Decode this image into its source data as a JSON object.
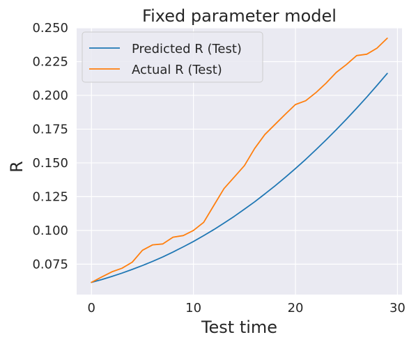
{
  "chart_data": {
    "type": "line",
    "title": "Fixed parameter model",
    "xlabel": "Test time",
    "ylabel": "R",
    "xlim": [
      -1.45,
      30.45
    ],
    "ylim": [
      0.0525,
      0.25
    ],
    "x_ticks": [
      0,
      10,
      20,
      30
    ],
    "y_ticks": [
      0.075,
      0.1,
      0.125,
      0.15,
      0.175,
      0.2,
      0.225,
      0.25
    ],
    "grid": true,
    "legend_position": "top-left",
    "series": [
      {
        "name": "Predicted R (Test)",
        "color": "#1f77b4",
        "x": [
          0,
          1,
          2,
          3,
          4,
          5,
          6,
          7,
          8,
          9,
          10,
          11,
          12,
          13,
          14,
          15,
          16,
          17,
          18,
          19,
          20,
          21,
          22,
          23,
          24,
          25,
          26,
          27,
          28,
          29
        ],
        "y": [
          0.0615,
          0.0636,
          0.0659,
          0.0684,
          0.0711,
          0.074,
          0.0771,
          0.0804,
          0.084,
          0.0878,
          0.0918,
          0.0961,
          0.1006,
          0.1054,
          0.1104,
          0.1157,
          0.1212,
          0.127,
          0.133,
          0.1393,
          0.1458,
          0.1526,
          0.1597,
          0.167,
          0.1746,
          0.1824,
          0.1905,
          0.1988,
          0.2074,
          0.2163
        ]
      },
      {
        "name": "Actual R (Test)",
        "color": "#ff7f0e",
        "x": [
          0,
          1,
          2,
          3,
          4,
          5,
          6,
          7,
          8,
          9,
          10,
          11,
          12,
          13,
          14,
          15,
          16,
          17,
          18,
          19,
          20,
          21,
          22,
          23,
          24,
          25,
          26,
          27,
          28,
          29
        ],
        "y": [
          0.0615,
          0.0655,
          0.0693,
          0.072,
          0.0765,
          0.0853,
          0.0893,
          0.09,
          0.095,
          0.0962,
          0.1,
          0.106,
          0.1185,
          0.131,
          0.1395,
          0.148,
          0.1607,
          0.171,
          0.1785,
          0.186,
          0.1932,
          0.196,
          0.202,
          0.209,
          0.217,
          0.2228,
          0.2295,
          0.2305,
          0.235,
          0.2423
        ]
      }
    ]
  },
  "colors": {
    "plot_background": "#eaeaf2",
    "grid": "#ffffff",
    "text": "#262626"
  }
}
